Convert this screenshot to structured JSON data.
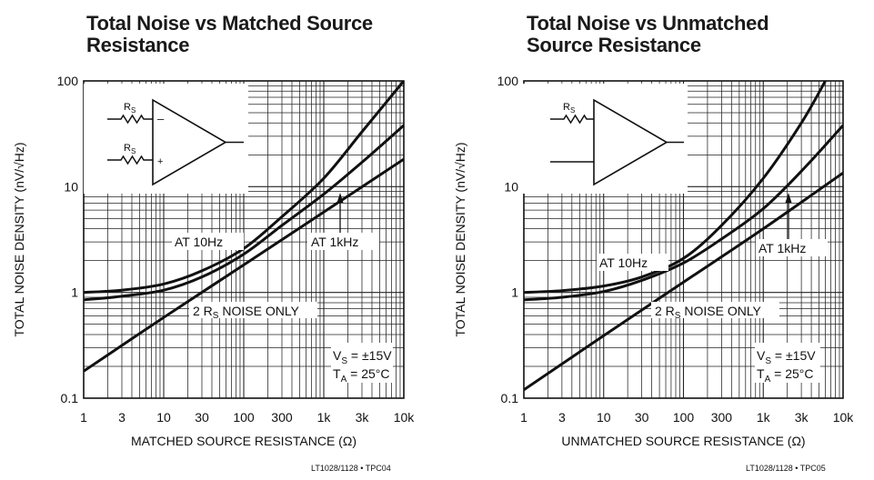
{
  "chart_data": [
    {
      "type": "line",
      "title": "Total Noise vs Matched Source Resistance",
      "title_lines": [
        "Total Noise vs Matched Source",
        "Resistance"
      ],
      "xlabel": "MATCHED SOURCE RESISTANCE (Ω)",
      "ylabel": "TOTAL NOISE DENSITY (nV/√Hz)",
      "x_scale": "log",
      "y_scale": "log",
      "xlim": [
        1,
        10000
      ],
      "ylim": [
        0.1,
        100
      ],
      "x_ticks": [
        1,
        3,
        10,
        30,
        100,
        300,
        1000,
        3000,
        10000
      ],
      "x_tick_labels": [
        "1",
        "3",
        "10",
        "30",
        "100",
        "300",
        "1k",
        "3k",
        "10k"
      ],
      "y_ticks": [
        0.1,
        1,
        10,
        100
      ],
      "y_tick_labels": [
        "0.1",
        "1",
        "10",
        "100"
      ],
      "grid": true,
      "series": [
        {
          "name": "AT 10Hz",
          "x": [
            1,
            3,
            10,
            30,
            100,
            300,
            1000,
            3000,
            10000
          ],
          "y": [
            1.0,
            1.05,
            1.2,
            1.6,
            2.6,
            5.2,
            12,
            33,
            100
          ]
        },
        {
          "name": "AT 1kHz",
          "x": [
            1,
            3,
            10,
            30,
            100,
            300,
            1000,
            3000,
            10000
          ],
          "y": [
            0.85,
            0.92,
            1.05,
            1.4,
            2.3,
            4.3,
            8.5,
            17,
            38
          ]
        },
        {
          "name": "2 RS NOISE ONLY",
          "x": [
            1,
            10,
            100,
            1000,
            10000
          ],
          "y": [
            0.18,
            0.58,
            1.82,
            5.75,
            18.2
          ]
        }
      ],
      "annotations": {
        "at10hz": "AT 10Hz",
        "at1khz": "AT 1kHz",
        "noise_prefix": "2 R",
        "noise_sub": "S",
        "noise_suffix": " NOISE ONLY",
        "vs_label": "V",
        "vs_sub": "S",
        "vs_value": " = ±15V",
        "ta_label": "T",
        "ta_sub": "A",
        "ta_value": " = 25°C",
        "rs_top_label": "R",
        "rs_top_sub": "S",
        "rs_bottom_label": "R",
        "rs_bottom_sub": "S",
        "minus_sign": "–",
        "plus_sign": "+"
      },
      "part_number": "LT1028/1128 • TPC04"
    },
    {
      "type": "line",
      "title": "Total Noise vs Unmatched Source Resistance",
      "title_lines": [
        "Total Noise vs Unmatched",
        "Source Resistance"
      ],
      "xlabel": "UNMATCHED SOURCE RESISTANCE (Ω)",
      "ylabel": "TOTAL NOISE DENSITY (nV/√Hz)",
      "x_scale": "log",
      "y_scale": "log",
      "xlim": [
        1,
        10000
      ],
      "ylim": [
        0.1,
        100
      ],
      "x_ticks": [
        1,
        3,
        10,
        30,
        100,
        300,
        1000,
        3000,
        10000
      ],
      "x_tick_labels": [
        "1",
        "3",
        "10",
        "30",
        "100",
        "300",
        "1k",
        "3k",
        "10k"
      ],
      "y_ticks": [
        0.1,
        1,
        10,
        100
      ],
      "y_tick_labels": [
        "0.1",
        "1",
        "10",
        "100"
      ],
      "grid": true,
      "series": [
        {
          "name": "AT 10Hz",
          "x": [
            1,
            3,
            10,
            30,
            100,
            300,
            1000,
            3000,
            6000
          ],
          "y": [
            1.0,
            1.04,
            1.15,
            1.4,
            2.1,
            4.3,
            12,
            40,
            100
          ]
        },
        {
          "name": "AT 1kHz",
          "x": [
            1,
            3,
            10,
            30,
            100,
            300,
            1000,
            3000,
            10000
          ],
          "y": [
            0.85,
            0.9,
            1.02,
            1.3,
            1.9,
            3.2,
            6.2,
            14,
            38
          ]
        },
        {
          "name": "2 RS NOISE ONLY",
          "x": [
            1,
            10,
            100,
            1000,
            10000
          ],
          "y": [
            0.12,
            0.39,
            1.25,
            4.0,
            13.5
          ]
        }
      ],
      "annotations": {
        "at10hz": "AT 10Hz",
        "at1khz": "AT 1kHz",
        "noise_prefix": "2 R",
        "noise_sub": "S",
        "noise_suffix": " NOISE ONLY",
        "vs_label": "V",
        "vs_sub": "S",
        "vs_value": " = ±15V",
        "ta_label": "T",
        "ta_sub": "A",
        "ta_value": " = 25°C",
        "rs_top_label": "R",
        "rs_top_sub": "S"
      },
      "part_number": "LT1028/1128 • TPC05"
    }
  ]
}
